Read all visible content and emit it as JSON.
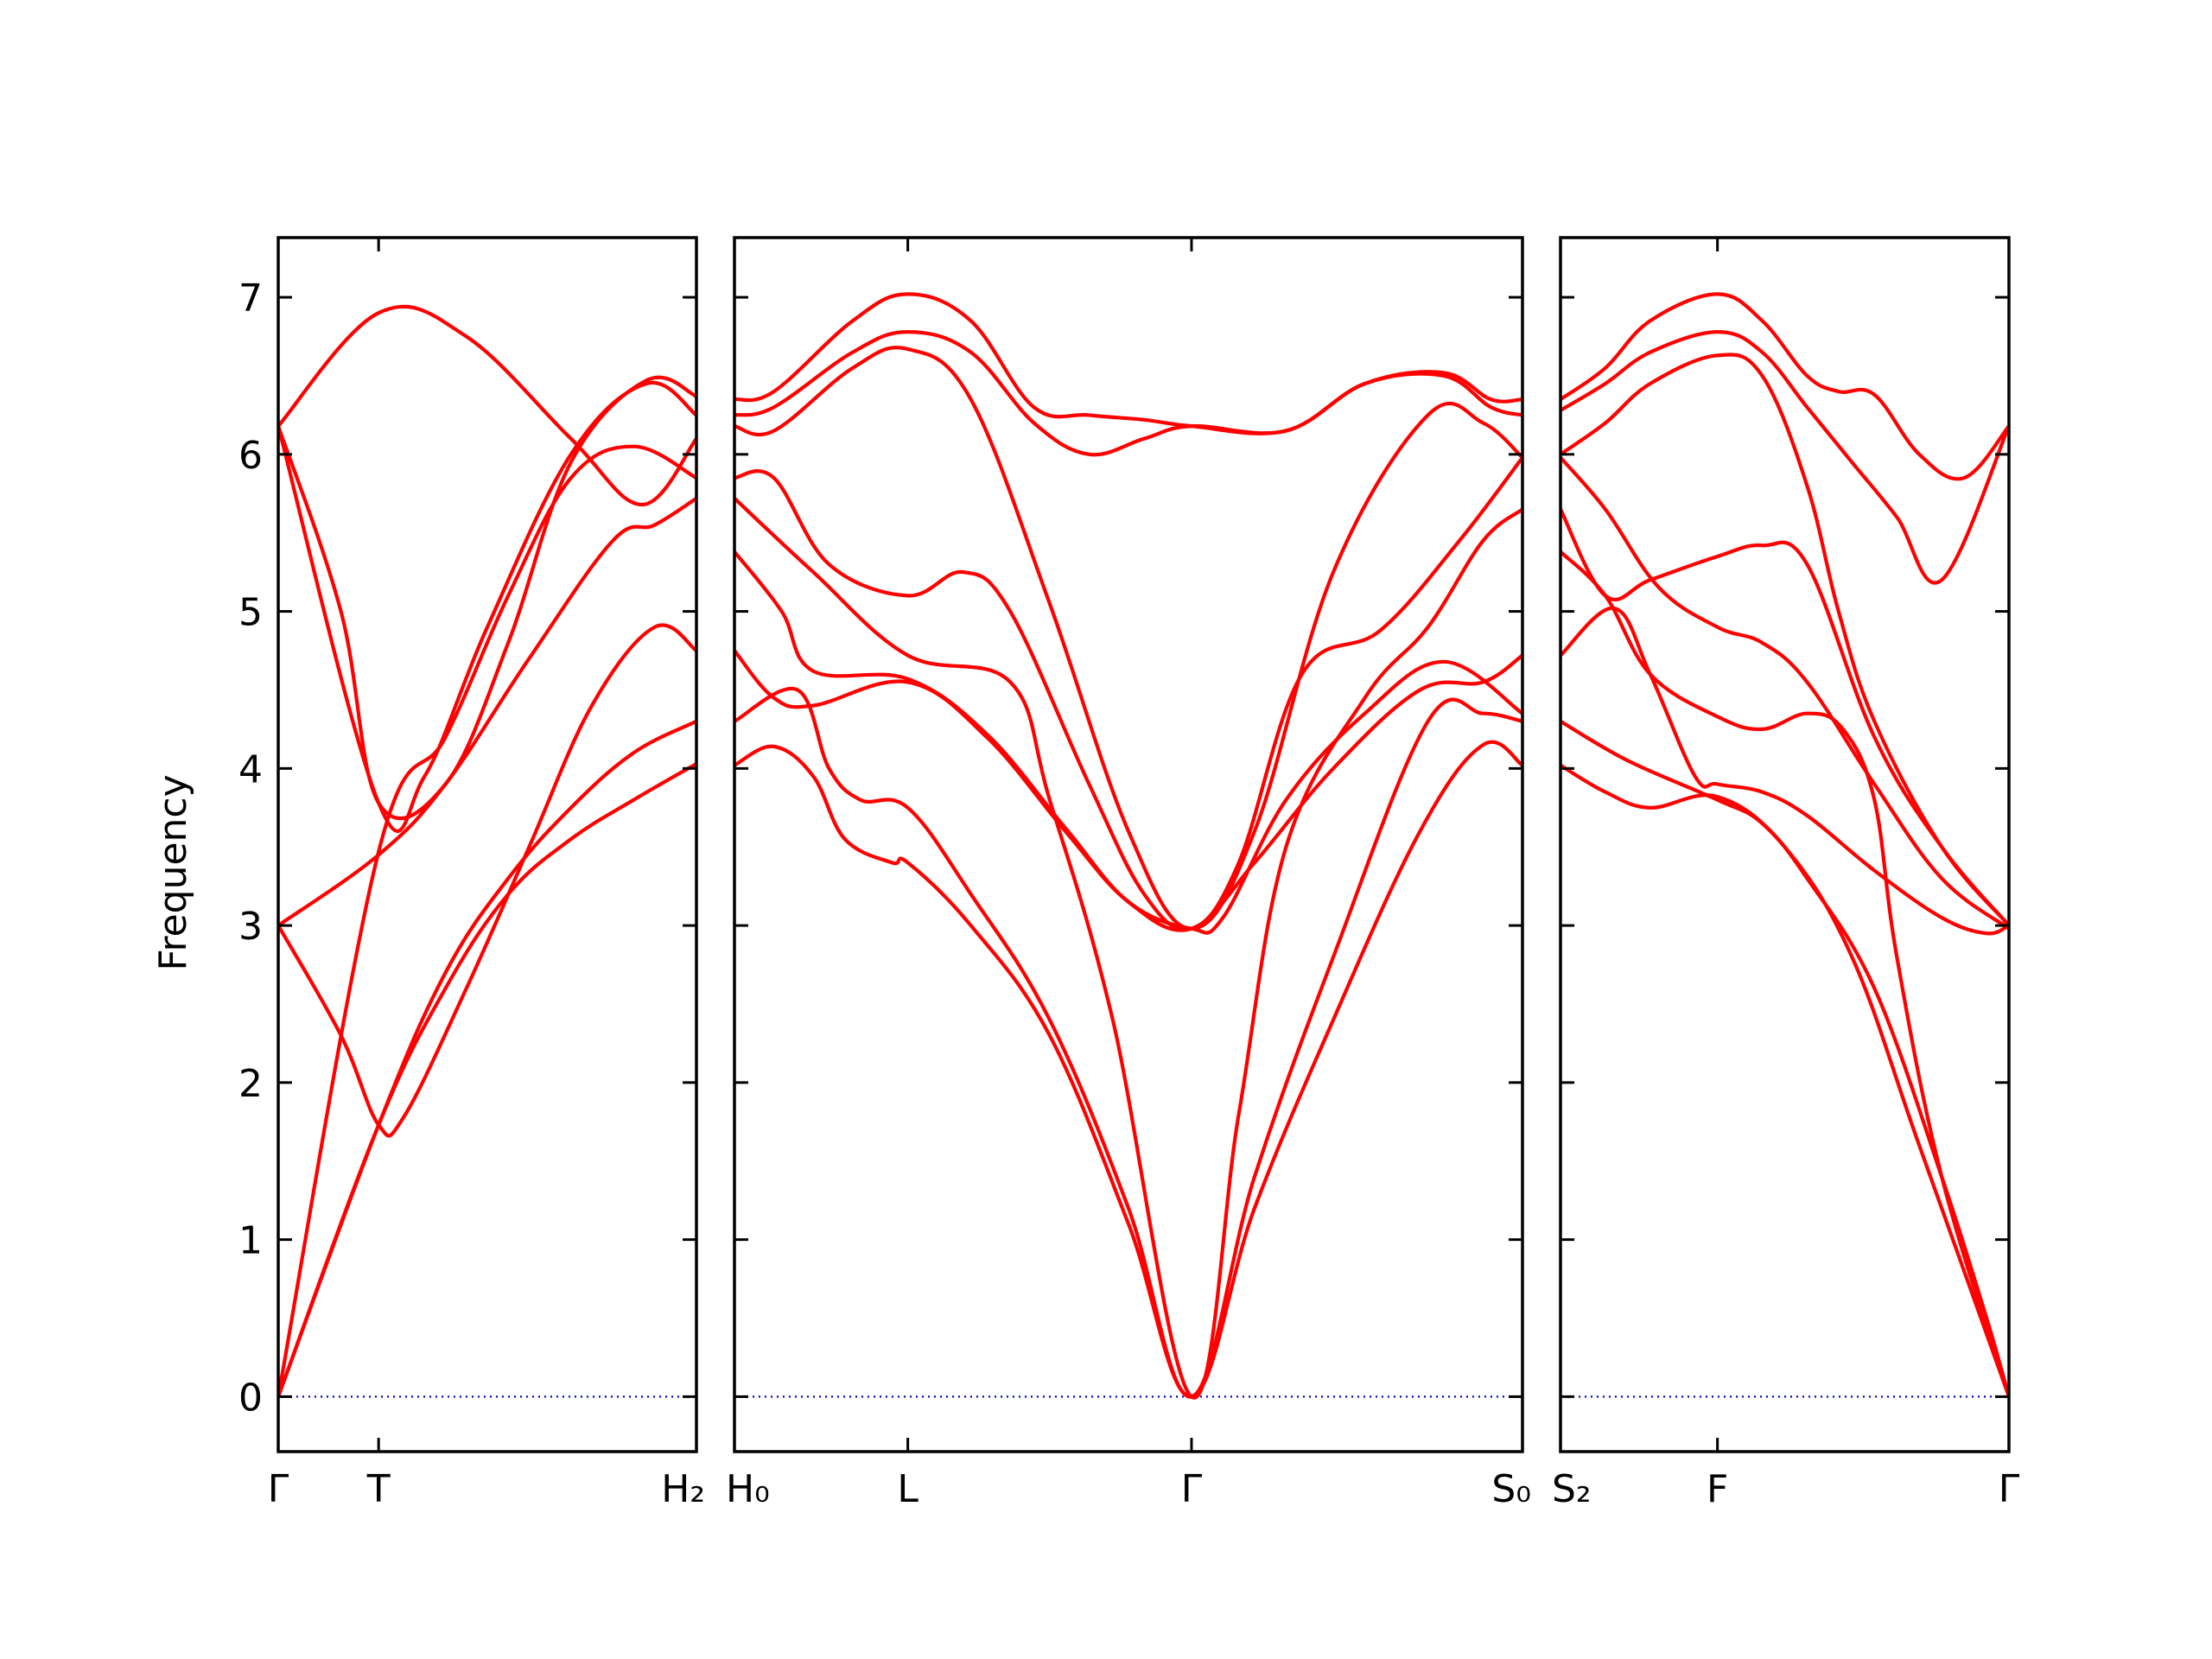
{
  "chart_data": {
    "type": "line",
    "title": "",
    "ylabel": "Frequency",
    "ylim": [
      -0.35,
      7.38
    ],
    "yticks": [
      "0",
      "1",
      "2",
      "3",
      "4",
      "5",
      "6",
      "7"
    ],
    "grid": false,
    "colors": {
      "bands": "#ff0000",
      "zero_line": "#0000cc",
      "frame": "#000000"
    },
    "panels": [
      {
        "name": "panel-1",
        "xlim": [
          0,
          1
        ],
        "xticks": [
          {
            "pos": 0,
            "label": "Γ"
          },
          {
            "pos": 0.24,
            "label": "T"
          },
          {
            "pos": 1,
            "label": "H₂"
          }
        ],
        "series": [
          {
            "x": [
              0,
              0.24,
              0.4,
              0.55,
              0.7,
              0.85,
              1
            ],
            "y": [
              0,
              1.73,
              2.6,
              3.2,
              3.55,
              3.8,
              4.03
            ]
          },
          {
            "x": [
              0,
              0.24,
              0.4,
              0.55,
              0.7,
              0.85,
              1
            ],
            "y": [
              0,
              1.73,
              2.7,
              3.3,
              3.75,
              4.1,
              4.3
            ]
          },
          {
            "x": [
              0,
              0.15,
              0.24,
              0.3,
              0.45,
              0.6,
              0.75,
              0.9,
              1
            ],
            "y": [
              3.0,
              2.3,
              1.73,
              1.78,
              2.6,
              3.5,
              4.4,
              4.9,
              4.75
            ]
          },
          {
            "x": [
              0,
              0.24,
              0.4,
              0.6,
              0.8,
              0.9,
              1
            ],
            "y": [
              3.0,
              3.45,
              3.9,
              4.7,
              5.45,
              5.55,
              5.72
            ]
          },
          {
            "x": [
              0,
              0.24,
              0.4,
              0.55,
              0.7,
              0.85,
              1
            ],
            "y": [
              0,
              3.47,
              4.2,
              5.1,
              5.85,
              6.05,
              5.85
            ]
          },
          {
            "x": [
              0,
              0.24,
              0.35,
              0.5,
              0.7,
              0.88,
              1
            ],
            "y": [
              6.18,
              3.78,
              3.95,
              4.9,
              6.0,
              6.45,
              6.25
            ]
          },
          {
            "x": [
              0,
              0.24,
              0.45,
              0.7,
              0.87,
              1
            ],
            "y": [
              6.18,
              6.9,
              6.75,
              6.1,
              5.68,
              6.1
            ]
          },
          {
            "x": [
              0,
              0.15,
              0.24,
              0.4,
              0.55,
              0.7,
              0.88,
              1
            ],
            "y": [
              6.18,
              5.0,
              3.78,
              3.9,
              4.8,
              5.95,
              6.47,
              6.37
            ]
          }
        ]
      },
      {
        "name": "panel-2",
        "xlim": [
          0,
          1
        ],
        "xticks": [
          {
            "pos": 0,
            "label": "H₀"
          },
          {
            "pos": 0.22,
            "label": "L"
          },
          {
            "pos": 0.58,
            "label": "Γ"
          },
          {
            "pos": 1,
            "label": "S₀"
          }
        ],
        "series": [
          {
            "x": [
              0,
              0.05,
              0.1,
              0.14,
              0.2,
              0.22,
              0.3,
              0.4,
              0.5,
              0.58,
              0.66,
              0.76,
              0.87,
              0.95,
              1
            ],
            "y": [
              4.02,
              4.14,
              3.95,
              3.55,
              3.4,
              3.4,
              3.0,
              2.3,
              1.1,
              0.0,
              1.2,
              2.4,
              3.6,
              4.15,
              4.02
            ]
          },
          {
            "x": [
              0,
              0.08,
              0.12,
              0.16,
              0.22,
              0.3,
              0.4,
              0.5,
              0.58,
              0.66,
              0.76,
              0.88,
              0.95,
              1
            ],
            "y": [
              4.3,
              4.5,
              4.0,
              3.8,
              3.75,
              3.2,
              2.4,
              1.2,
              0.0,
              1.4,
              2.8,
              4.3,
              4.35,
              4.3
            ]
          },
          {
            "x": [
              0,
              0.05,
              0.1,
              0.22,
              0.32,
              0.42,
              0.5,
              0.58,
              0.66,
              0.76,
              0.87,
              0.95,
              1
            ],
            "y": [
              4.75,
              4.45,
              4.4,
              4.55,
              4.2,
              3.6,
              3.15,
              2.98,
              3.4,
              4.0,
              4.5,
              4.55,
              4.72
            ]
          },
          {
            "x": [
              0,
              0.06,
              0.1,
              0.22,
              0.32,
              0.42,
              0.5,
              0.58,
              0.62,
              0.7,
              0.8,
              0.9,
              1
            ],
            "y": [
              5.38,
              5.0,
              4.62,
              4.57,
              4.22,
              3.62,
              3.15,
              2.98,
              3.05,
              3.8,
              4.35,
              4.68,
              4.35
            ]
          },
          {
            "x": [
              0,
              0.1,
              0.22,
              0.35,
              0.4,
              0.48,
              0.58,
              0.64,
              0.7,
              0.8,
              0.88,
              0.95,
              1
            ],
            "y": [
              5.72,
              5.25,
              4.72,
              4.55,
              3.8,
              2.4,
              0.0,
              1.8,
              3.5,
              4.45,
              4.9,
              5.45,
              5.65
            ]
          },
          {
            "x": [
              0,
              0.05,
              0.12,
              0.22,
              0.29,
              0.35,
              0.45,
              0.52,
              0.58,
              0.64,
              0.72,
              0.82,
              0.92,
              1
            ],
            "y": [
              5.85,
              5.85,
              5.3,
              5.1,
              5.25,
              5.0,
              3.9,
              3.2,
              2.98,
              3.4,
              4.6,
              4.88,
              5.45,
              5.98
            ]
          },
          {
            "x": [
              0,
              0.05,
              0.15,
              0.22,
              0.3,
              0.4,
              0.5,
              0.58,
              0.66,
              0.76,
              0.88,
              0.95,
              1
            ],
            "y": [
              6.18,
              6.15,
              6.55,
              6.67,
              6.35,
              5.05,
              3.6,
              2.98,
              3.6,
              5.25,
              6.25,
              6.2,
              5.98
            ]
          },
          {
            "x": [
              0,
              0.05,
              0.15,
              0.22,
              0.3,
              0.38,
              0.45,
              0.52,
              0.58,
              0.7,
              0.8,
              0.9,
              0.96,
              1
            ],
            "y": [
              6.25,
              6.3,
              6.65,
              6.78,
              6.65,
              6.2,
              6.0,
              6.1,
              6.18,
              6.15,
              6.45,
              6.5,
              6.3,
              6.25
            ]
          },
          {
            "x": [
              0,
              0.05,
              0.15,
              0.22,
              0.3,
              0.38,
              0.45,
              0.52,
              0.58,
              0.7,
              0.8,
              0.9,
              0.96,
              1
            ],
            "y": [
              6.35,
              6.4,
              6.85,
              7.02,
              6.85,
              6.3,
              6.25,
              6.22,
              6.18,
              6.15,
              6.45,
              6.52,
              6.35,
              6.35
            ]
          }
        ]
      },
      {
        "name": "panel-3",
        "xlim": [
          0,
          1
        ],
        "xticks": [
          {
            "pos": 0,
            "label": "S₂"
          },
          {
            "pos": 0.35,
            "label": "F"
          },
          {
            "pos": 1,
            "label": "Γ"
          }
        ],
        "series": [
          {
            "x": [
              0,
              0.1,
              0.2,
              0.35,
              0.5,
              0.65,
              0.8,
              1
            ],
            "y": [
              4.02,
              3.85,
              3.75,
              3.82,
              3.5,
              2.8,
              1.6,
              0.0
            ]
          },
          {
            "x": [
              0,
              0.15,
              0.35,
              0.45,
              0.55,
              0.7,
              0.85,
              0.95,
              1
            ],
            "y": [
              4.3,
              4.05,
              3.8,
              3.65,
              3.3,
              2.6,
              1.4,
              0.5,
              0.0
            ]
          },
          {
            "x": [
              0,
              0.12,
              0.2,
              0.3,
              0.35,
              0.45,
              0.55,
              0.7,
              0.85,
              0.95,
              1
            ],
            "y": [
              4.72,
              5.02,
              4.6,
              3.95,
              3.9,
              3.85,
              3.7,
              3.35,
              3.05,
              2.95,
              3.0
            ]
          },
          {
            "x": [
              0,
              0.1,
              0.2,
              0.35,
              0.45,
              0.55,
              0.63,
              0.7,
              0.75,
              0.85,
              1
            ],
            "y": [
              5.38,
              5.1,
              4.6,
              4.33,
              4.25,
              4.35,
              4.25,
              3.8,
              2.8,
              1.4,
              0.0
            ]
          },
          {
            "x": [
              0,
              0.1,
              0.2,
              0.35,
              0.45,
              0.55,
              0.7,
              0.85,
              1
            ],
            "y": [
              5.65,
              5.1,
              5.2,
              5.35,
              5.42,
              5.3,
              4.2,
              3.5,
              3.0
            ]
          },
          {
            "x": [
              0,
              0.1,
              0.22,
              0.35,
              0.45,
              0.55,
              0.7,
              0.85,
              1
            ],
            "y": [
              5.98,
              5.65,
              5.15,
              4.9,
              4.8,
              4.55,
              3.9,
              3.3,
              2.98
            ]
          },
          {
            "x": [
              0,
              0.1,
              0.2,
              0.35,
              0.45,
              0.55,
              0.62,
              0.7,
              0.85,
              1
            ],
            "y": [
              6.0,
              6.2,
              6.45,
              6.63,
              6.5,
              5.8,
              5.0,
              4.3,
              3.5,
              3.0
            ]
          },
          {
            "x": [
              0,
              0.1,
              0.2,
              0.35,
              0.45,
              0.55,
              0.65,
              0.75,
              0.85,
              1
            ],
            "y": [
              6.28,
              6.45,
              6.65,
              6.78,
              6.65,
              6.3,
              5.95,
              5.6,
              5.2,
              6.18
            ]
          },
          {
            "x": [
              0,
              0.1,
              0.2,
              0.35,
              0.45,
              0.55,
              0.62,
              0.7,
              0.8,
              0.9,
              1
            ],
            "y": [
              6.35,
              6.55,
              6.85,
              7.02,
              6.85,
              6.5,
              6.4,
              6.38,
              6.0,
              5.85,
              6.18
            ]
          }
        ]
      }
    ]
  }
}
